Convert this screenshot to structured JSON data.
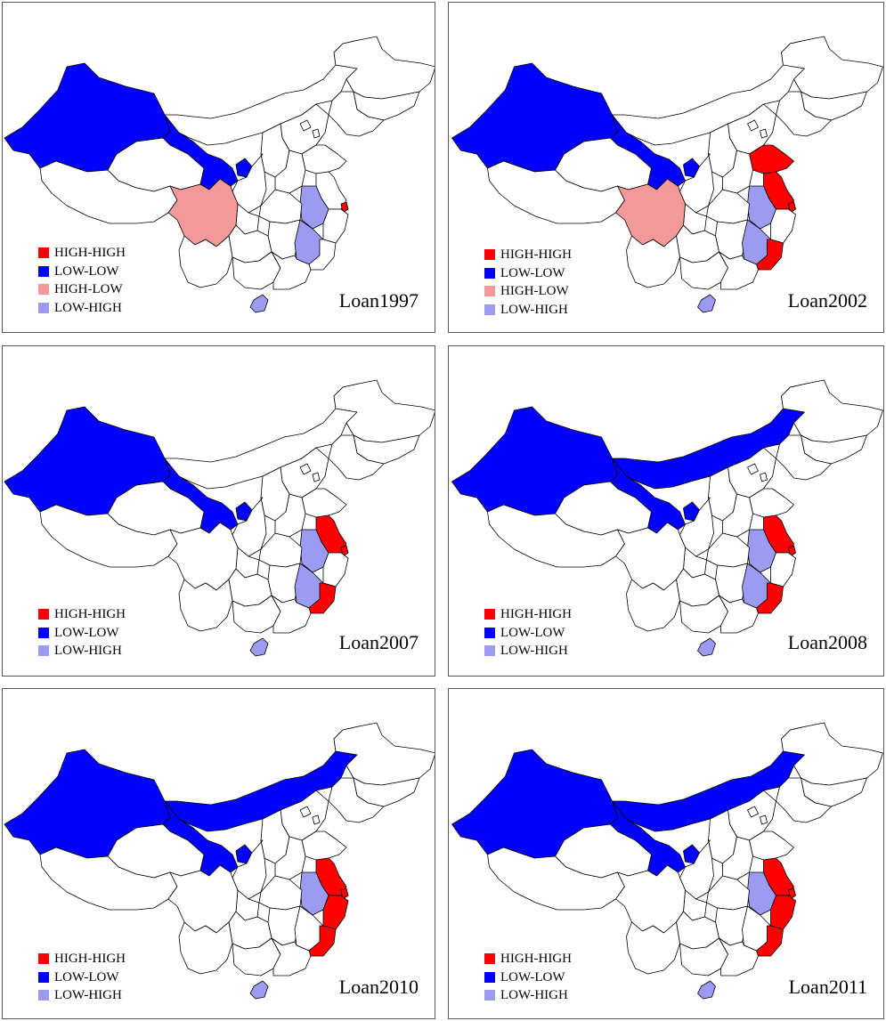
{
  "colors": {
    "HIGH-HIGH": "#ff0000",
    "LOW-LOW": "#0000ff",
    "HIGH-LOW": "#f4999a",
    "LOW-HIGH": "#9b9bf2",
    "none": "#ffffff",
    "border": "#000000"
  },
  "panels": [
    {
      "label": "Loan1997",
      "legend": [
        "HIGH-HIGH",
        "LOW-LOW",
        "HIGH-LOW",
        "LOW-HIGH"
      ],
      "regions": {
        "xinjiang": "LOW-LOW",
        "gansu": "LOW-LOW",
        "ningxia": "LOW-LOW",
        "sichuan": "HIGH-LOW",
        "shanghai": "HIGH-HIGH",
        "anhui": "LOW-HIGH",
        "jiangxi": "LOW-HIGH",
        "hainan": "LOW-HIGH"
      }
    },
    {
      "label": "Loan2002",
      "legend": [
        "HIGH-HIGH",
        "LOW-LOW",
        "HIGH-LOW",
        "LOW-HIGH"
      ],
      "regions": {
        "xinjiang": "LOW-LOW",
        "gansu": "LOW-LOW",
        "ningxia": "LOW-LOW",
        "sichuan": "HIGH-LOW",
        "shandong": "HIGH-HIGH",
        "jiangsu": "HIGH-HIGH",
        "shanghai": "HIGH-HIGH",
        "fujian": "HIGH-HIGH",
        "anhui": "LOW-HIGH",
        "jiangxi": "LOW-HIGH",
        "hainan": "LOW-HIGH"
      }
    },
    {
      "label": "Loan2007",
      "legend": [
        "HIGH-HIGH",
        "LOW-LOW",
        "LOW-HIGH"
      ],
      "regions": {
        "xinjiang": "LOW-LOW",
        "gansu": "LOW-LOW",
        "ningxia": "LOW-LOW",
        "jiangsu": "HIGH-HIGH",
        "shanghai": "HIGH-HIGH",
        "fujian": "HIGH-HIGH",
        "anhui": "LOW-HIGH",
        "jiangxi": "LOW-HIGH",
        "hainan": "LOW-HIGH"
      }
    },
    {
      "label": "Loan2008",
      "legend": [
        "HIGH-HIGH",
        "LOW-LOW",
        "LOW-HIGH"
      ],
      "regions": {
        "xinjiang": "LOW-LOW",
        "gansu": "LOW-LOW",
        "ningxia": "LOW-LOW",
        "innermongolia": "LOW-LOW",
        "jiangsu": "HIGH-HIGH",
        "shanghai": "HIGH-HIGH",
        "fujian": "HIGH-HIGH",
        "anhui": "LOW-HIGH",
        "jiangxi": "LOW-HIGH",
        "hainan": "LOW-HIGH"
      }
    },
    {
      "label": "Loan2010",
      "legend": [
        "HIGH-HIGH",
        "LOW-LOW",
        "LOW-HIGH"
      ],
      "regions": {
        "xinjiang": "LOW-LOW",
        "gansu": "LOW-LOW",
        "ningxia": "LOW-LOW",
        "innermongolia": "LOW-LOW",
        "jiangsu": "HIGH-HIGH",
        "shanghai": "HIGH-HIGH",
        "zhejiang": "HIGH-HIGH",
        "fujian": "HIGH-HIGH",
        "anhui": "LOW-HIGH",
        "hainan": "LOW-HIGH"
      }
    },
    {
      "label": "Loan2011",
      "legend": [
        "HIGH-HIGH",
        "LOW-LOW",
        "LOW-HIGH"
      ],
      "regions": {
        "xinjiang": "LOW-LOW",
        "gansu": "LOW-LOW",
        "ningxia": "LOW-LOW",
        "innermongolia": "LOW-LOW",
        "jiangsu": "HIGH-HIGH",
        "shanghai": "HIGH-HIGH",
        "zhejiang": "HIGH-HIGH",
        "fujian": "HIGH-HIGH",
        "anhui": "LOW-HIGH",
        "hainan": "LOW-HIGH"
      }
    }
  ]
}
